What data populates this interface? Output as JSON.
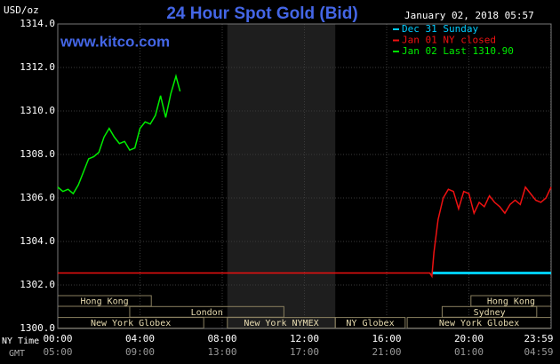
{
  "chart_data": {
    "type": "line",
    "title": "24 Hour Spot Gold (Bid)",
    "timestamp": "January 02, 2018 05:57",
    "source": "www.kitco.com",
    "ylabel": "USD/oz",
    "xlabel": "NY Time",
    "x2label": "GMT",
    "xlim": [
      0,
      24
    ],
    "ylim": [
      1300,
      1314
    ],
    "yticks": [
      {
        "value": 1300,
        "label": "1300.0"
      },
      {
        "value": 1302,
        "label": "1302.0"
      },
      {
        "value": 1304,
        "label": "1304.0"
      },
      {
        "value": 1306,
        "label": "1306.0"
      },
      {
        "value": 1308,
        "label": "1308.0"
      },
      {
        "value": 1310,
        "label": "1310.0"
      },
      {
        "value": 1312,
        "label": "1312.0"
      },
      {
        "value": 1314,
        "label": "1314.0"
      }
    ],
    "xticks": [
      {
        "value": 0,
        "label": "00:00"
      },
      {
        "value": 4,
        "label": "04:00"
      },
      {
        "value": 8,
        "label": "08:00"
      },
      {
        "value": 12,
        "label": "12:00"
      },
      {
        "value": 16,
        "label": "16:00"
      },
      {
        "value": 20,
        "label": "20:00"
      },
      {
        "value": 23.983,
        "label": "23:59"
      }
    ],
    "x2ticks": [
      {
        "value": 0,
        "label": "05:00"
      },
      {
        "value": 4,
        "label": "09:00"
      },
      {
        "value": 8,
        "label": "13:00"
      },
      {
        "value": 12,
        "label": "17:00"
      },
      {
        "value": 16,
        "label": "21:00"
      },
      {
        "value": 20,
        "label": "01:00"
      },
      {
        "value": 23.983,
        "label": "04:59"
      }
    ],
    "grid": true,
    "series": [
      {
        "name": "Dec 31 Sunday",
        "color": "#00ccff",
        "x": [
          18.2,
          24
        ],
        "values": [
          1302.55,
          1302.55
        ]
      },
      {
        "name": "Jan 01 NY closed",
        "color": "#ee1111",
        "x": [
          0,
          18.1,
          18.2,
          18.3,
          18.5,
          18.75,
          19.0,
          19.25,
          19.5,
          19.75,
          20.0,
          20.25,
          20.5,
          20.75,
          21.0,
          21.25,
          21.5,
          21.75,
          22.0,
          22.25,
          22.5,
          22.75,
          23.0,
          23.25,
          23.5,
          23.75,
          24.0
        ],
        "values": [
          1302.55,
          1302.55,
          1302.4,
          1303.5,
          1305.0,
          1306.0,
          1306.4,
          1306.3,
          1305.5,
          1306.3,
          1306.2,
          1305.3,
          1305.8,
          1305.6,
          1306.1,
          1305.8,
          1305.6,
          1305.3,
          1305.7,
          1305.9,
          1305.7,
          1306.5,
          1306.2,
          1305.9,
          1305.8,
          1306.0,
          1306.5
        ]
      },
      {
        "name": "Jan 02 Last 1310.90",
        "color": "#00ee00",
        "x": [
          0,
          0.25,
          0.5,
          0.75,
          1.0,
          1.25,
          1.5,
          1.75,
          2.0,
          2.25,
          2.5,
          2.75,
          3.0,
          3.25,
          3.5,
          3.75,
          4.0,
          4.25,
          4.5,
          4.75,
          5.0,
          5.25,
          5.5,
          5.75,
          5.95
        ],
        "values": [
          1306.5,
          1306.3,
          1306.4,
          1306.2,
          1306.6,
          1307.2,
          1307.8,
          1307.9,
          1308.1,
          1308.8,
          1309.2,
          1308.8,
          1308.5,
          1308.6,
          1308.2,
          1308.3,
          1309.2,
          1309.5,
          1309.4,
          1309.8,
          1310.7,
          1309.7,
          1310.8,
          1311.6,
          1310.9
        ]
      }
    ],
    "sessions": [
      {
        "name": "Hong Kong",
        "start": 0,
        "end": 4.55
      },
      {
        "name": "London",
        "start": 3.5,
        "end": 11.0
      },
      {
        "name": "New York Globex",
        "start": 0,
        "end": 7.1
      },
      {
        "name": "New York NYMEX",
        "start": 8.25,
        "end": 13.5
      },
      {
        "name": "NY Globex",
        "start": 13.5,
        "end": 16.9
      },
      {
        "name": "Sydney",
        "start": 18.7,
        "end": 23.3
      },
      {
        "name": "Hong Kong",
        "start": 20.1,
        "end": 24
      },
      {
        "name": "New York Globex",
        "start": 17.0,
        "end": 24
      }
    ]
  }
}
